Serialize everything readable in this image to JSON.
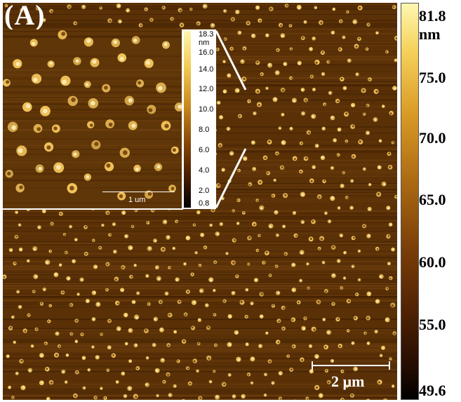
{
  "panel_label": "(A)",
  "colors": {
    "background": "#5a3107",
    "particle": "#f2c35a",
    "particle_core": "#fff3c0",
    "colormap_top": "#fff7b0",
    "colormap_bottom": "#000000"
  },
  "main_colorbar": {
    "unit": "nm",
    "max_label": "81.8",
    "ticks": [
      "75.0",
      "70.0",
      "65.0",
      "60.0",
      "55.0"
    ],
    "min_label": "49.6"
  },
  "inset_colorbar": {
    "unit": "nm",
    "max_label": "18.3",
    "ticks": [
      "16.0",
      "14.0",
      "12.0",
      "10.0",
      "8.0",
      "6.0",
      "4.0",
      "2.0"
    ],
    "min_label": "0.8"
  },
  "main_scalebar_label": "2 µm",
  "inset_scalebar_label": "1 um"
}
